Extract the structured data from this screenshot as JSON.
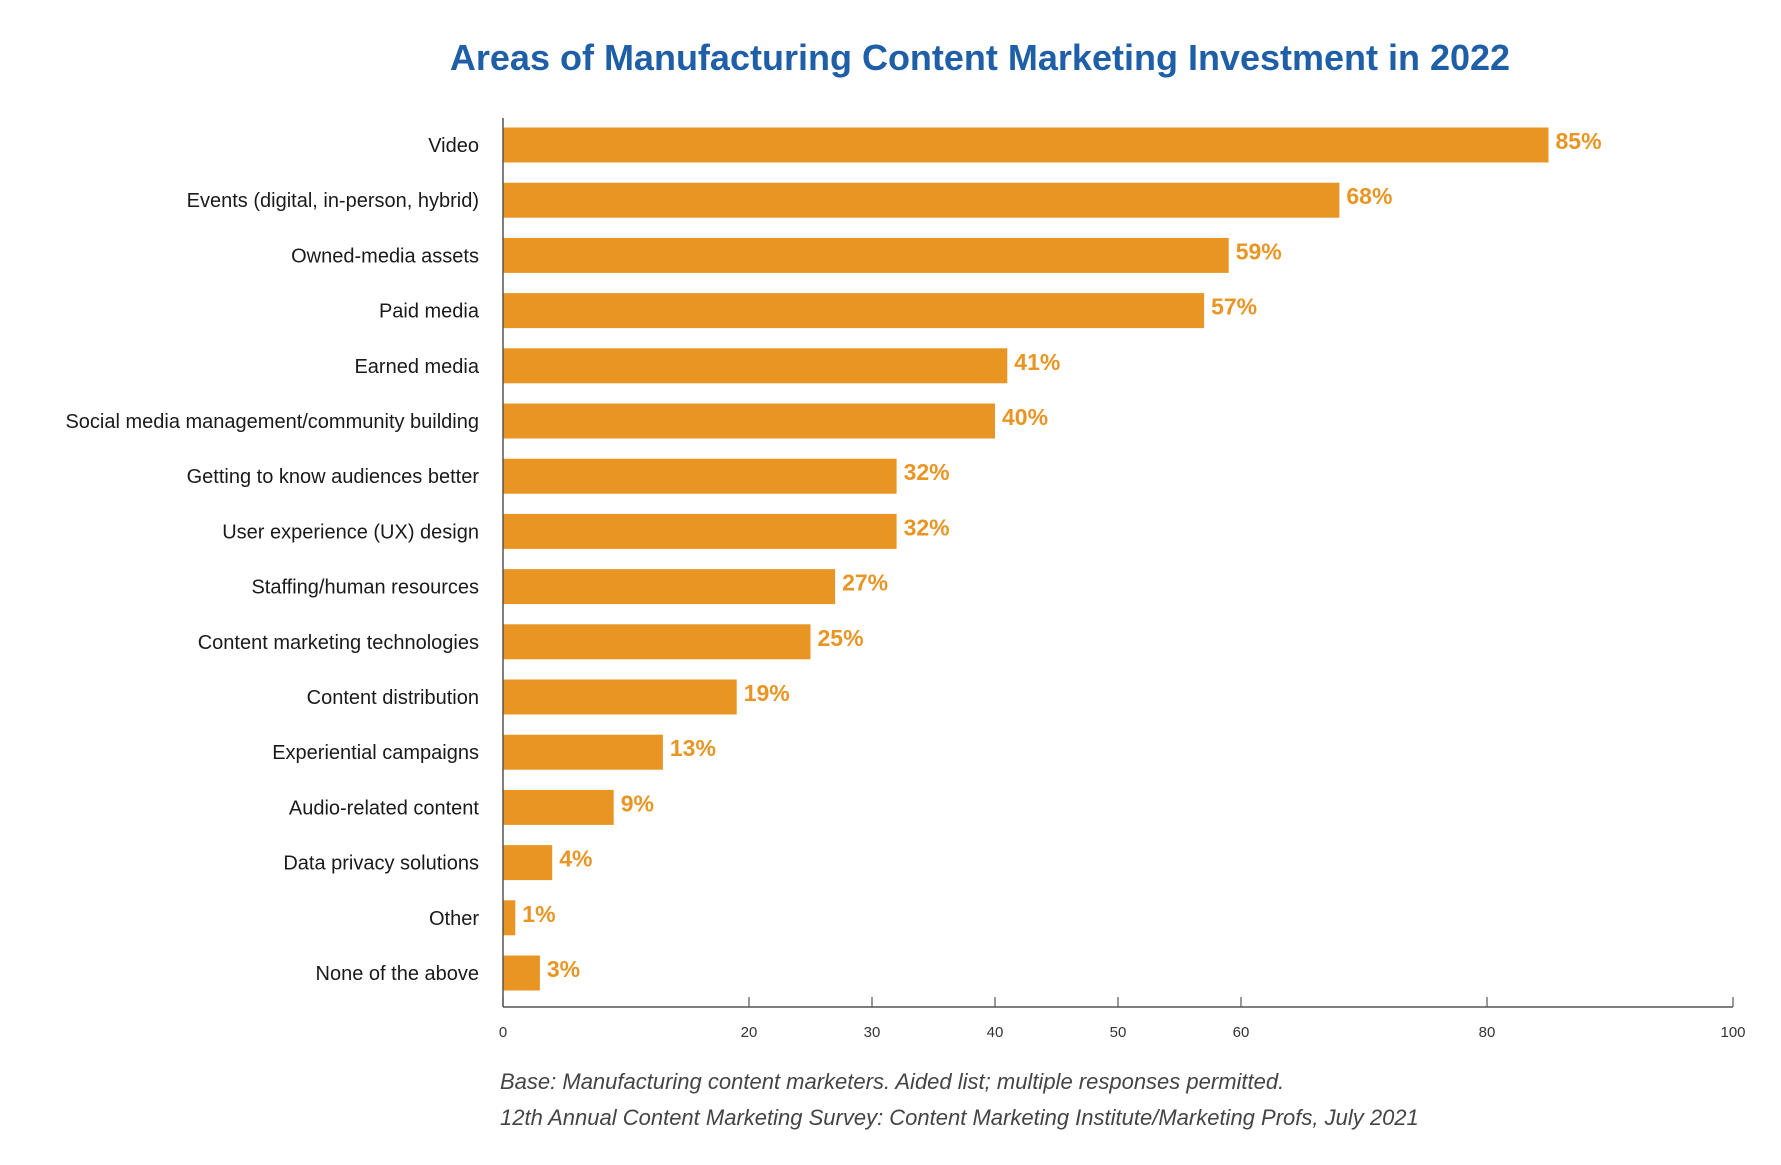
{
  "chart_data": {
    "type": "bar",
    "orientation": "horizontal",
    "title": "Areas of Manufacturing Content Marketing Investment in 2022",
    "categories": [
      "Video",
      "Events (digital, in-person, hybrid)",
      "Owned-media assets",
      "Paid media",
      "Earned media",
      "Social media management/community building",
      "Getting to know audiences better",
      "User experience (UX) design",
      "Staffing/human resources",
      "Content marketing technologies",
      "Content distribution",
      "Experiential campaigns",
      "Audio-related content",
      "Data privacy solutions",
      "Other",
      "None of the above"
    ],
    "values": [
      85,
      68,
      59,
      57,
      41,
      40,
      32,
      32,
      27,
      25,
      19,
      13,
      9,
      4,
      1,
      3
    ],
    "value_labels": [
      "85%",
      "68%",
      "59%",
      "57%",
      "41%",
      "40%",
      "32%",
      "32%",
      "27%",
      "25%",
      "19%",
      "13%",
      "9%",
      "4%",
      "1%",
      "3%"
    ],
    "xlim": [
      0,
      100
    ],
    "x_ticks": [
      0,
      20,
      30,
      40,
      50,
      60,
      80,
      100
    ],
    "x_tick_labels": [
      "0",
      "20",
      "30",
      "40",
      "50",
      "60",
      "80",
      "100"
    ],
    "xlabel": "",
    "ylabel": "",
    "grid": false,
    "legend": "none"
  },
  "footnotes": [
    "Base: Manufacturing content marketers. Aided list; multiple responses permitted.",
    "12th Annual Content Marketing Survey: Content Marketing Institute/Marketing Profs, July 2021"
  ],
  "colors": {
    "bar": "#E99524",
    "value_label": "#E99524",
    "title": "#1F5FA8",
    "axis": "#555555"
  }
}
